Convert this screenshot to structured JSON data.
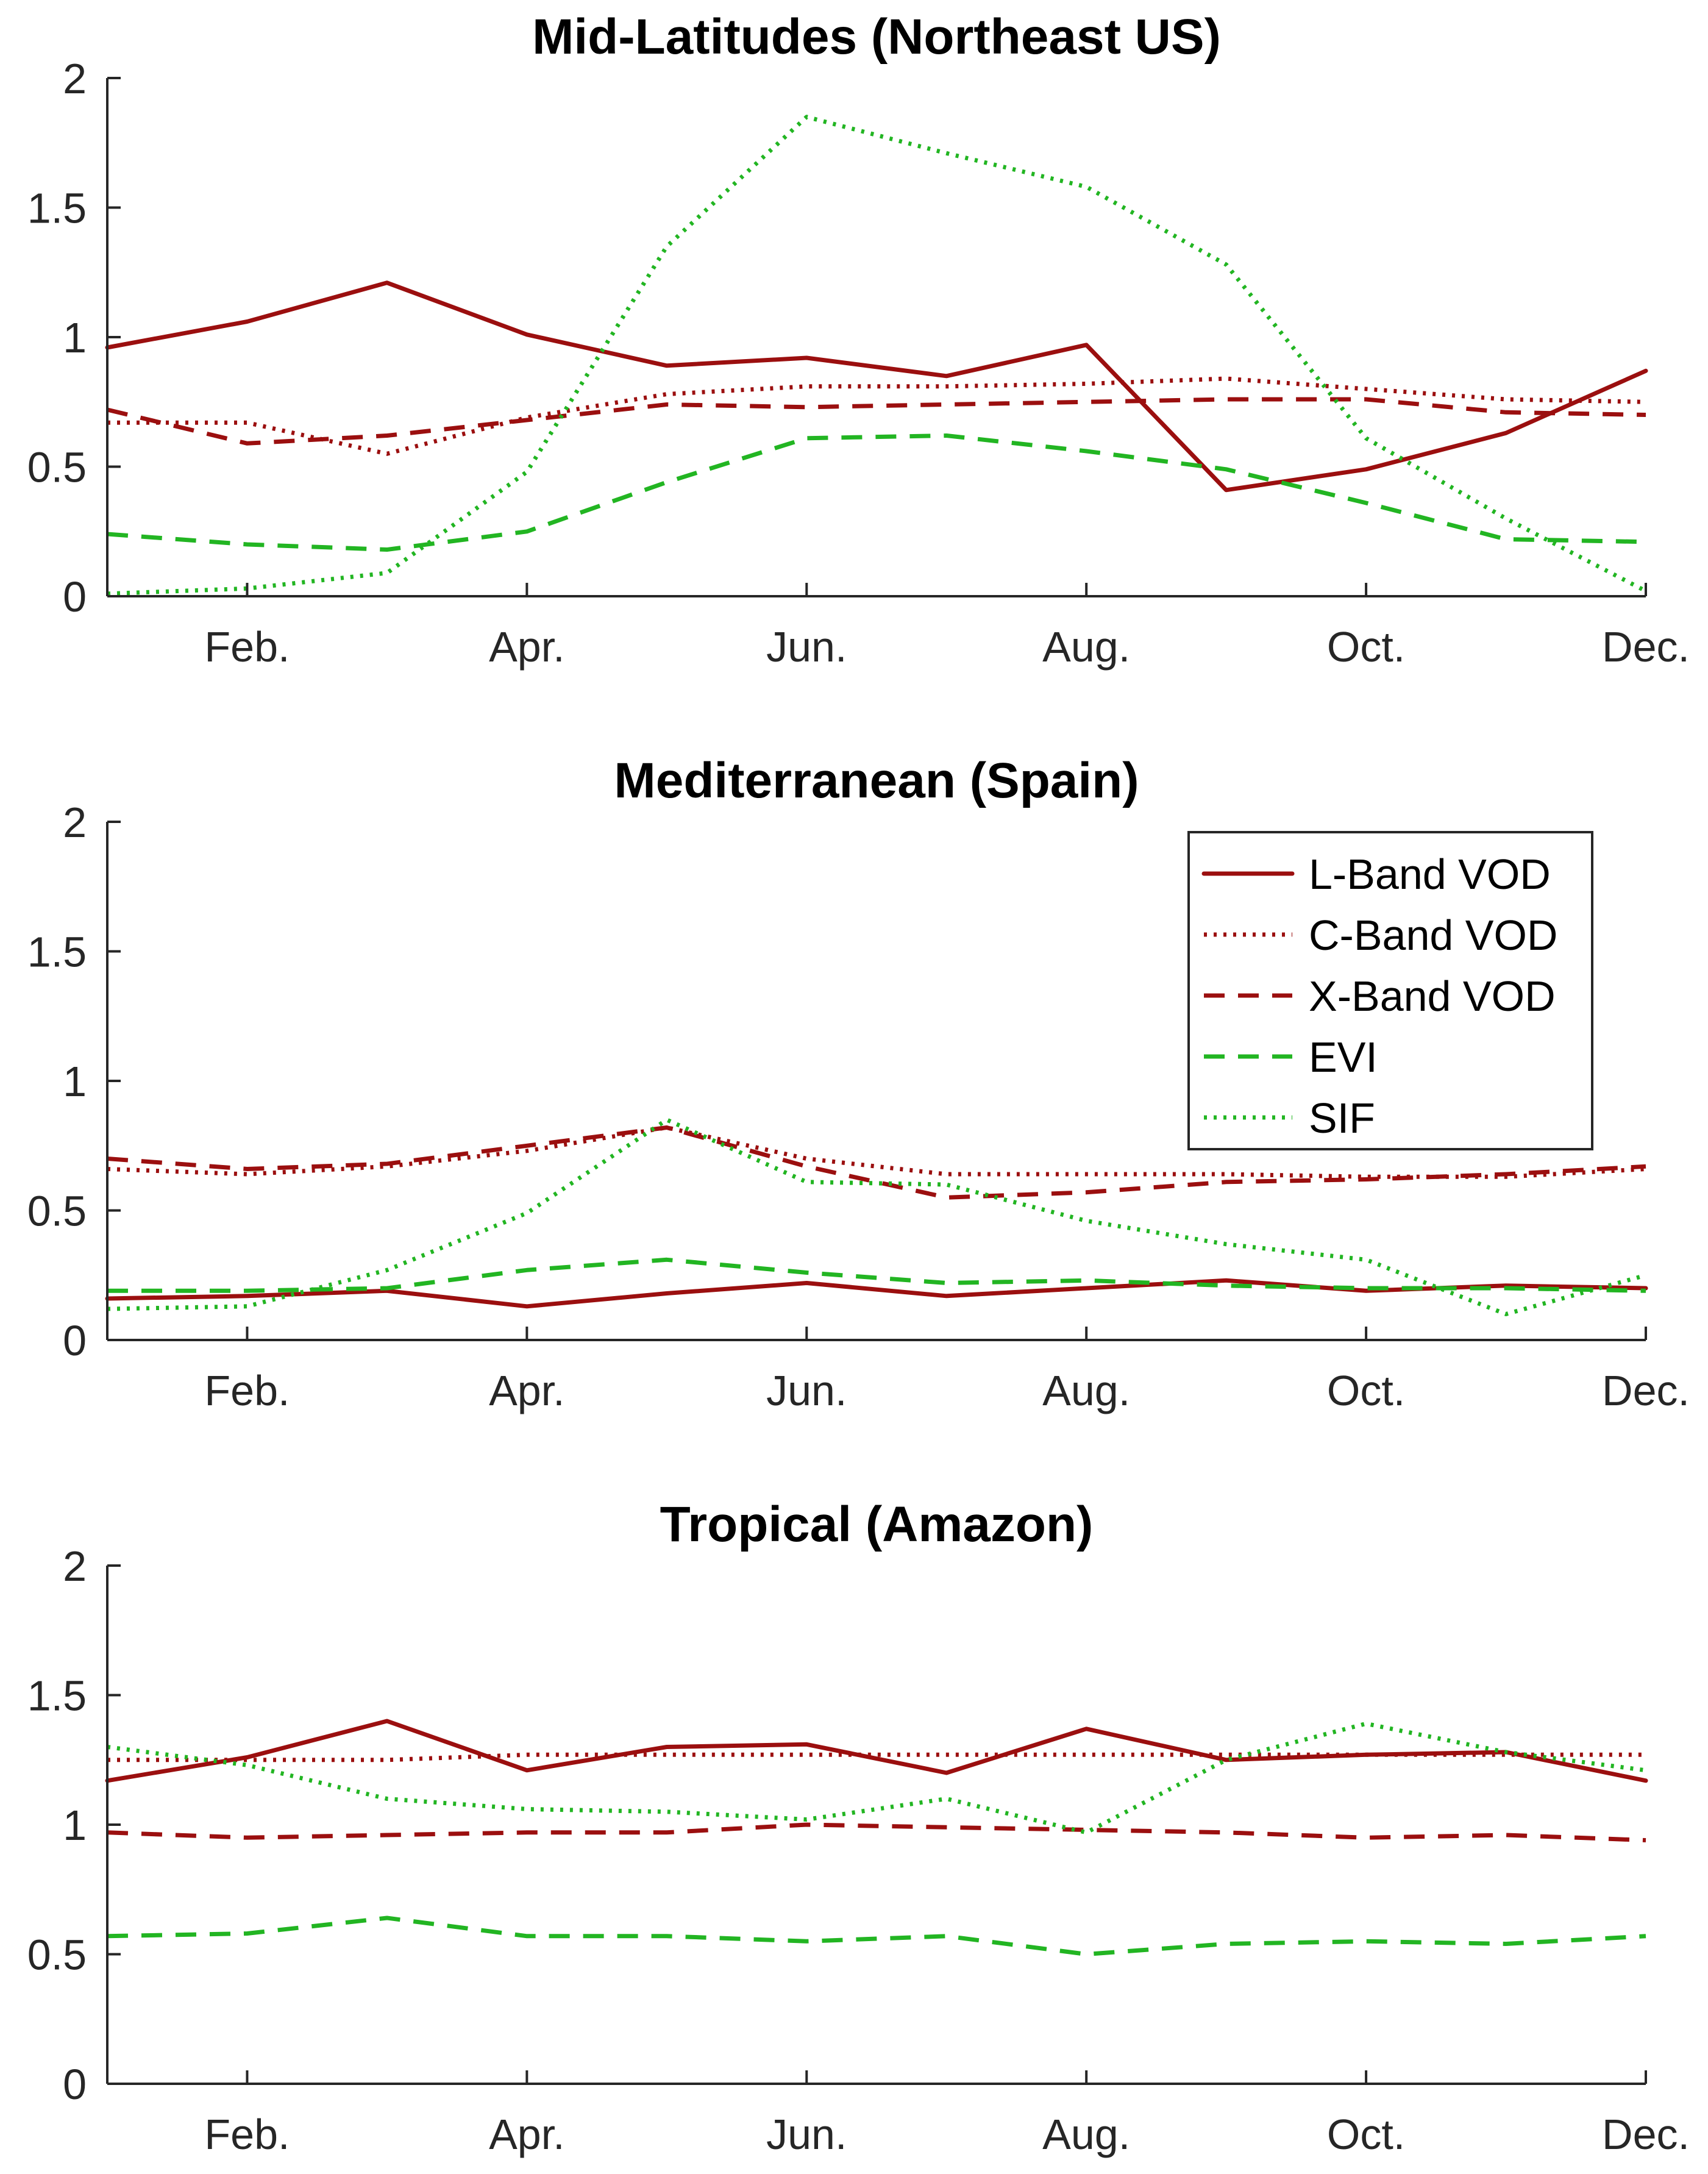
{
  "x_tick_labels": [
    "Feb.",
    "Apr.",
    "Jun.",
    "Aug.",
    "Oct.",
    "Dec."
  ],
  "y_tick_labels": [
    "0",
    "0.5",
    "1",
    "1.5",
    "2"
  ],
  "colors": {
    "vod": "#9b0f0f",
    "green": "#22b522",
    "axis": "#262626"
  },
  "legend": {
    "placement": "top-right (middle panel)",
    "entries": [
      {
        "label": "L-Band VOD",
        "color": "#9b0f0f",
        "style": "solid"
      },
      {
        "label": "C-Band VOD",
        "color": "#9b0f0f",
        "style": "dotted"
      },
      {
        "label": "X-Band VOD",
        "color": "#9b0f0f",
        "style": "dashed"
      },
      {
        "label": "EVI",
        "color": "#22b522",
        "style": "dashed"
      },
      {
        "label": "SIF",
        "color": "#22b522",
        "style": "dotted"
      }
    ]
  },
  "chart_data": [
    {
      "type": "line",
      "title": "Mid-Latitudes (Northeast US)",
      "xlabel": "",
      "ylabel": "",
      "x": [
        1,
        2,
        3,
        4,
        5,
        6,
        7,
        8,
        9,
        10,
        11,
        12
      ],
      "xlim": [
        1,
        12
      ],
      "ylim": [
        0,
        2
      ],
      "grid": false,
      "series": [
        {
          "name": "L-Band VOD",
          "values": [
            0.96,
            1.06,
            1.21,
            1.01,
            0.89,
            0.92,
            0.85,
            0.97,
            0.41,
            0.49,
            0.63,
            0.87
          ]
        },
        {
          "name": "C-Band VOD",
          "values": [
            0.67,
            0.67,
            0.55,
            0.69,
            0.78,
            0.81,
            0.81,
            0.82,
            0.84,
            0.8,
            0.76,
            0.75
          ]
        },
        {
          "name": "X-Band VOD",
          "values": [
            0.72,
            0.59,
            0.62,
            0.68,
            0.74,
            0.73,
            0.74,
            0.75,
            0.76,
            0.76,
            0.71,
            0.7
          ]
        },
        {
          "name": "EVI",
          "values": [
            0.24,
            0.2,
            0.18,
            0.25,
            0.44,
            0.61,
            0.62,
            0.56,
            0.49,
            0.36,
            0.22,
            0.21
          ]
        },
        {
          "name": "SIF",
          "values": [
            0.01,
            0.03,
            0.09,
            0.48,
            1.35,
            1.85,
            1.71,
            1.58,
            1.28,
            0.61,
            0.3,
            0.02
          ]
        }
      ]
    },
    {
      "type": "line",
      "title": "Mediterranean (Spain)",
      "xlabel": "",
      "ylabel": "",
      "x": [
        1,
        2,
        3,
        4,
        5,
        6,
        7,
        8,
        9,
        10,
        11,
        12
      ],
      "xlim": [
        1,
        12
      ],
      "ylim": [
        0,
        2
      ],
      "grid": false,
      "series": [
        {
          "name": "L-Band VOD",
          "values": [
            0.16,
            0.17,
            0.19,
            0.13,
            0.18,
            0.22,
            0.17,
            0.2,
            0.23,
            0.19,
            0.21,
            0.2
          ]
        },
        {
          "name": "C-Band VOD",
          "values": [
            0.66,
            0.64,
            0.67,
            0.73,
            0.82,
            0.7,
            0.64,
            0.64,
            0.64,
            0.63,
            0.63,
            0.66
          ]
        },
        {
          "name": "X-Band VOD",
          "values": [
            0.7,
            0.66,
            0.68,
            0.75,
            0.82,
            0.67,
            0.55,
            0.57,
            0.61,
            0.62,
            0.64,
            0.67
          ]
        },
        {
          "name": "EVI",
          "values": [
            0.19,
            0.19,
            0.2,
            0.27,
            0.31,
            0.26,
            0.22,
            0.23,
            0.21,
            0.2,
            0.2,
            0.19
          ]
        },
        {
          "name": "SIF",
          "values": [
            0.12,
            0.13,
            0.27,
            0.49,
            0.85,
            0.61,
            0.6,
            0.46,
            0.37,
            0.31,
            0.1,
            0.25
          ]
        }
      ]
    },
    {
      "type": "line",
      "title": "Tropical (Amazon)",
      "xlabel": "",
      "ylabel": "",
      "x": [
        1,
        2,
        3,
        4,
        5,
        6,
        7,
        8,
        9,
        10,
        11,
        12
      ],
      "xlim": [
        1,
        12
      ],
      "ylim": [
        0,
        2
      ],
      "grid": false,
      "series": [
        {
          "name": "L-Band VOD",
          "values": [
            1.17,
            1.26,
            1.4,
            1.21,
            1.3,
            1.31,
            1.2,
            1.37,
            1.25,
            1.27,
            1.28,
            1.17
          ]
        },
        {
          "name": "C-Band VOD",
          "values": [
            1.25,
            1.25,
            1.25,
            1.27,
            1.27,
            1.27,
            1.27,
            1.27,
            1.27,
            1.27,
            1.27,
            1.27
          ]
        },
        {
          "name": "X-Band VOD",
          "values": [
            0.97,
            0.95,
            0.96,
            0.97,
            0.97,
            1.0,
            0.99,
            0.98,
            0.97,
            0.95,
            0.96,
            0.94
          ]
        },
        {
          "name": "EVI",
          "values": [
            0.57,
            0.58,
            0.64,
            0.57,
            0.57,
            0.55,
            0.57,
            0.5,
            0.54,
            0.55,
            0.54,
            0.57
          ]
        },
        {
          "name": "SIF",
          "values": [
            1.3,
            1.23,
            1.1,
            1.06,
            1.05,
            1.02,
            1.1,
            0.97,
            1.25,
            1.39,
            1.28,
            1.21
          ]
        }
      ]
    }
  ]
}
